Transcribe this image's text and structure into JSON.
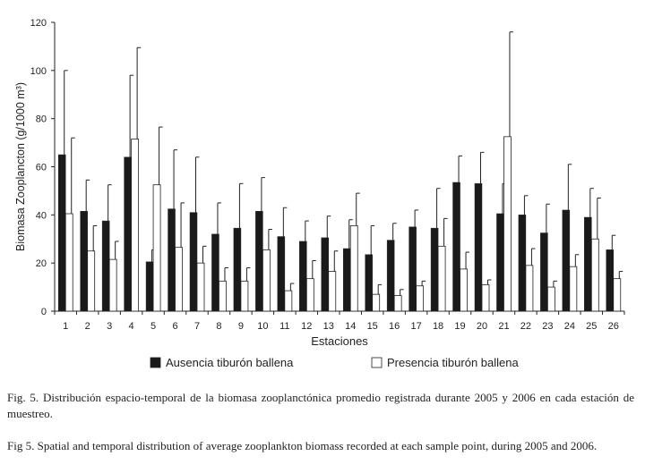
{
  "chart_data": {
    "type": "bar",
    "ylabel": "Biomasa Zooplancton (g/1000 m³)",
    "xlabel": "Estaciones",
    "ylim": [
      0,
      120
    ],
    "yticks": [
      0,
      20,
      40,
      60,
      80,
      100,
      120
    ],
    "grid": false,
    "legend_position": "bottom",
    "categories": [
      "1",
      "2",
      "3",
      "4",
      "5",
      "6",
      "7",
      "8",
      "9",
      "10",
      "11",
      "12",
      "13",
      "14",
      "15",
      "16",
      "17",
      "18",
      "19",
      "20",
      "21",
      "22",
      "23",
      "24",
      "25",
      "26"
    ],
    "series": [
      {
        "name": "Ausencia tiburón ballena",
        "color": "#1a1a1a",
        "values": [
          65,
          41.5,
          37.5,
          64,
          20.5,
          42.5,
          41,
          32,
          34.5,
          41.5,
          31,
          29,
          30.5,
          26,
          23.5,
          29.5,
          35,
          34.5,
          53.5,
          53,
          40.5,
          40,
          32.5,
          42,
          39,
          25.5
        ],
        "error_upper": [
          100,
          54.5,
          52.5,
          98,
          25.5,
          67,
          64,
          45,
          53,
          55.5,
          43,
          37.5,
          39.5,
          38,
          35.5,
          36.5,
          42,
          51,
          64.5,
          66,
          53,
          48,
          44.5,
          61,
          51,
          31.5
        ]
      },
      {
        "name": "Presencia tiburón ballena",
        "color": "#ffffff",
        "values": [
          40.5,
          25,
          21.5,
          71.5,
          52.5,
          26.5,
          20,
          12.5,
          12.5,
          25.5,
          8.5,
          13.5,
          16.5,
          35.5,
          7,
          6.5,
          10.5,
          27,
          17.5,
          11,
          72.5,
          19,
          10,
          18.5,
          30,
          13.5
        ],
        "error_upper": [
          72,
          35.5,
          29,
          109.5,
          76.5,
          45,
          27,
          18,
          18,
          34,
          11.5,
          21,
          25,
          49,
          11,
          9,
          12.5,
          38.5,
          24.5,
          13,
          116,
          26,
          12.5,
          23.5,
          47,
          16.5
        ]
      }
    ]
  },
  "captions": {
    "es": "Fig. 5. Distribución espacio-temporal de la biomasa zooplanctónica promedio registrada  durante 2005 y 2006 en cada estación de muestreo.",
    "en": "Fig 5. Spatial and temporal distribution of average zooplankton biomass recorded at each sample point, during 2005 and 2006."
  }
}
